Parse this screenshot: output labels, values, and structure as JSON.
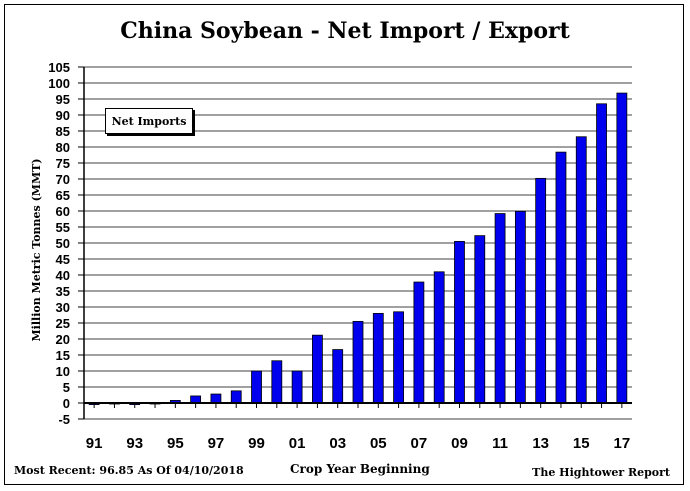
{
  "chart_data": {
    "type": "bar",
    "title": "China Soybean - Net Import / Export",
    "ylabel": "Million Metric Tonnes (MMT)",
    "xlabel": "Crop Year Beginning",
    "ylim": [
      -5,
      105
    ],
    "yticks": [
      -5,
      0,
      5,
      10,
      15,
      20,
      25,
      30,
      35,
      40,
      45,
      50,
      55,
      60,
      65,
      70,
      75,
      80,
      85,
      90,
      95,
      100,
      105
    ],
    "categories": [
      "91",
      "92",
      "93",
      "94",
      "95",
      "96",
      "97",
      "98",
      "99",
      "00",
      "01",
      "02",
      "03",
      "04",
      "05",
      "06",
      "07",
      "08",
      "09",
      "10",
      "11",
      "12",
      "13",
      "14",
      "15",
      "16",
      "17"
    ],
    "xtick_labels": [
      "91",
      "93",
      "95",
      "97",
      "99",
      "01",
      "03",
      "05",
      "07",
      "09",
      "11",
      "13",
      "15",
      "17"
    ],
    "series": [
      {
        "name": "Net Imports",
        "color": "#0000ee",
        "values": [
          -0.5,
          0,
          -0.5,
          0,
          0.8,
          2.2,
          2.8,
          3.8,
          10,
          13.2,
          10,
          21.2,
          16.7,
          25.5,
          28,
          28.5,
          37.8,
          41,
          50.5,
          52.3,
          59.2,
          59.9,
          70.2,
          78.4,
          83.2,
          93.5,
          96.85
        ]
      }
    ],
    "legend": {
      "label": "Net Imports",
      "position": "top-left"
    },
    "grid": true
  },
  "footer": {
    "left": "Most Recent: 96.85 As Of 04/10/2018",
    "center": "Crop Year Beginning",
    "right": "The Hightower Report"
  },
  "colors": {
    "bar": "#0000ee",
    "grid": "#000000",
    "background": "#ffffff"
  }
}
